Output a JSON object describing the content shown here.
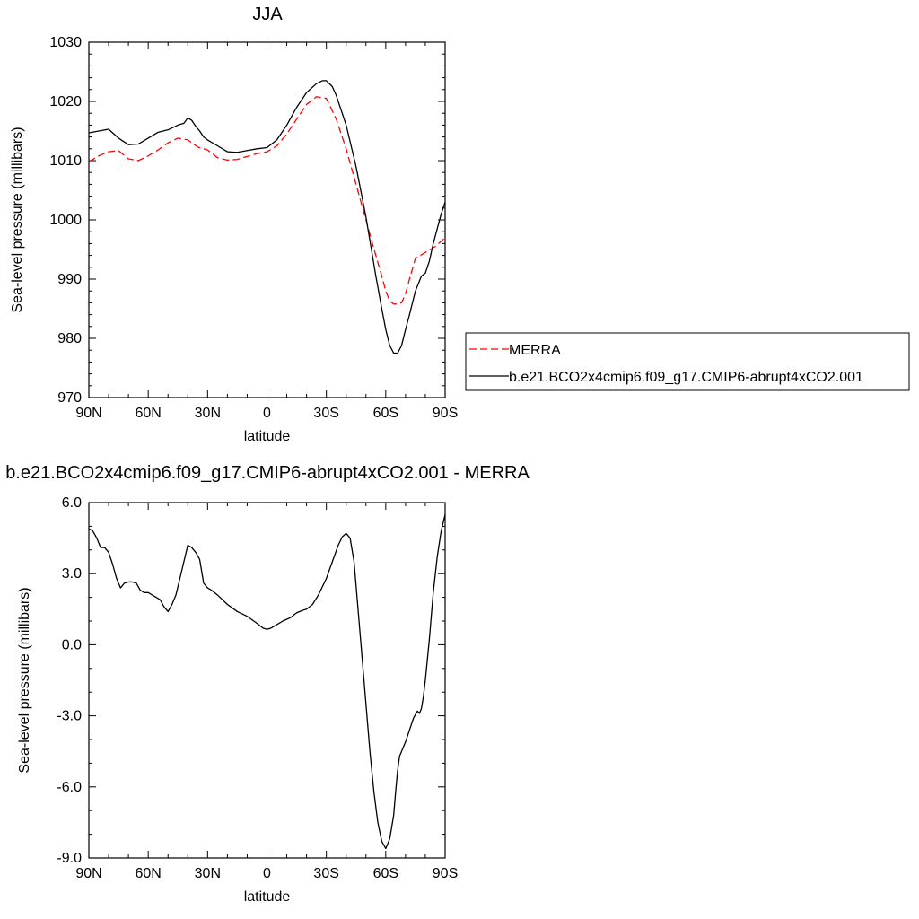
{
  "chart_data": [
    {
      "type": "line",
      "title": "JJA",
      "xlabel": "latitude",
      "ylabel": "Sea-level pressure (millibars)",
      "xlim": [
        90,
        -90
      ],
      "ylim": [
        970,
        1030
      ],
      "x_ticks": [
        90,
        60,
        30,
        0,
        -30,
        -60,
        -90
      ],
      "x_tick_labels": [
        "90N",
        "60N",
        "30N",
        "0",
        "30S",
        "60S",
        "90S"
      ],
      "y_ticks": [
        970,
        980,
        990,
        1000,
        1010,
        1020,
        1030
      ],
      "y_tick_labels": [
        "970",
        "980",
        "990",
        "1000",
        "1010",
        "1020",
        "1030"
      ],
      "legend_position": "right",
      "series": [
        {
          "name": "MERRA",
          "color": "#ff0000",
          "style": "dashed",
          "x": [
            90,
            85,
            80,
            75,
            70,
            65,
            60,
            55,
            50,
            45,
            40,
            35,
            30,
            25,
            20,
            15,
            10,
            5,
            0,
            -5,
            -10,
            -15,
            -20,
            -25,
            -30,
            -35,
            -40,
            -45,
            -50,
            -52,
            -55,
            -58,
            -60,
            -62,
            -64,
            -66,
            -68,
            -70,
            -72,
            -75,
            -80,
            -85,
            -90
          ],
          "y": [
            1009.8,
            1010.8,
            1011.5,
            1011.7,
            1010.3,
            1010.0,
            1010.8,
            1011.8,
            1013.0,
            1013.8,
            1013.5,
            1012.3,
            1011.8,
            1010.5,
            1010.1,
            1010.2,
            1010.7,
            1011.2,
            1011.5,
            1012.5,
            1014.5,
            1017.0,
            1019.5,
            1020.8,
            1020.5,
            1017.0,
            1012.0,
            1006.0,
            1000.0,
            997.5,
            994.0,
            990.5,
            988.0,
            986.3,
            985.8,
            985.8,
            986.0,
            987.5,
            990.0,
            993.5,
            994.5,
            995.5,
            997.0
          ]
        },
        {
          "name": "b.e21.BCO2x4cmip6.f09_g17.CMIP6-abrupt4xCO2.001",
          "color": "#000000",
          "style": "solid",
          "x": [
            90,
            85,
            80,
            75,
            70,
            65,
            60,
            55,
            50,
            45,
            42,
            40,
            38,
            36,
            34,
            32,
            30,
            25,
            20,
            15,
            10,
            5,
            0,
            -5,
            -10,
            -15,
            -20,
            -25,
            -28,
            -30,
            -33,
            -35,
            -40,
            -45,
            -50,
            -52,
            -55,
            -58,
            -60,
            -62,
            -64,
            -66,
            -68,
            -70,
            -72,
            -75,
            -78,
            -80,
            -82,
            -84,
            -86,
            -88,
            -90
          ],
          "y": [
            1014.7,
            1015.0,
            1015.3,
            1013.8,
            1012.7,
            1012.8,
            1013.8,
            1014.8,
            1015.2,
            1016.0,
            1016.3,
            1017.2,
            1016.8,
            1015.8,
            1015.0,
            1014.0,
            1013.5,
            1012.5,
            1011.5,
            1011.4,
            1011.7,
            1012.0,
            1012.2,
            1013.5,
            1016.0,
            1019.0,
            1021.5,
            1023.0,
            1023.5,
            1023.5,
            1022.5,
            1021.0,
            1016.0,
            1009.0,
            1000.5,
            996.5,
            990.5,
            985.0,
            981.5,
            978.8,
            977.5,
            977.5,
            978.8,
            981.5,
            984.0,
            988.0,
            990.5,
            991.0,
            993.0,
            996.0,
            998.5,
            1001.0,
            1003.0
          ]
        }
      ]
    },
    {
      "type": "line",
      "title": "b.e21.BCO2x4cmip6.f09_g17.CMIP6-abrupt4xCO2.001 - MERRA",
      "xlabel": "latitude",
      "ylabel": "Sea-level pressure (millibars)",
      "xlim": [
        90,
        -90
      ],
      "ylim": [
        -9,
        6
      ],
      "x_ticks": [
        90,
        60,
        30,
        0,
        -30,
        -60,
        -90
      ],
      "x_tick_labels": [
        "90N",
        "60N",
        "30N",
        "0",
        "30S",
        "60S",
        "90S"
      ],
      "y_ticks": [
        -9,
        -6,
        -3,
        0,
        3,
        6
      ],
      "y_tick_labels": [
        "-9.0",
        "-6.0",
        "-3.0",
        "0.0",
        "3.0",
        "6.0"
      ],
      "series": [
        {
          "color": "#000000",
          "style": "solid",
          "x": [
            90,
            88,
            86,
            84,
            82,
            80,
            78,
            76,
            74,
            72,
            70,
            68,
            66,
            64,
            62,
            60,
            58,
            56,
            54,
            52,
            50,
            48,
            46,
            44,
            42,
            40,
            38,
            36,
            34,
            32,
            30,
            28,
            25,
            20,
            15,
            10,
            5,
            2,
            0,
            -2,
            -5,
            -8,
            -12,
            -15,
            -18,
            -20,
            -23,
            -26,
            -30,
            -33,
            -36,
            -38,
            -40,
            -42,
            -44,
            -46,
            -48,
            -50,
            -52,
            -54,
            -56,
            -58,
            -60,
            -62,
            -64,
            -65,
            -66,
            -67,
            -68,
            -70,
            -72,
            -74,
            -76,
            -77,
            -78,
            -79,
            -80,
            -82,
            -84,
            -86,
            -88,
            -90
          ],
          "y": [
            4.9,
            4.8,
            4.5,
            4.1,
            4.1,
            3.9,
            3.4,
            2.8,
            2.4,
            2.6,
            2.65,
            2.65,
            2.6,
            2.3,
            2.2,
            2.2,
            2.1,
            2.0,
            1.9,
            1.6,
            1.4,
            1.7,
            2.1,
            2.8,
            3.5,
            4.2,
            4.1,
            3.9,
            3.6,
            2.6,
            2.4,
            2.3,
            2.1,
            1.7,
            1.4,
            1.2,
            0.9,
            0.7,
            0.65,
            0.7,
            0.85,
            1.0,
            1.15,
            1.35,
            1.45,
            1.5,
            1.7,
            2.1,
            2.8,
            3.5,
            4.2,
            4.55,
            4.7,
            4.5,
            3.5,
            1.5,
            -0.5,
            -2.5,
            -4.5,
            -6.2,
            -7.5,
            -8.3,
            -8.6,
            -8.2,
            -7.2,
            -6.2,
            -5.3,
            -4.7,
            -4.5,
            -4.1,
            -3.6,
            -3.1,
            -2.8,
            -2.9,
            -2.7,
            -2.2,
            -1.5,
            0.2,
            2.2,
            3.7,
            4.8,
            5.5
          ]
        }
      ]
    }
  ]
}
